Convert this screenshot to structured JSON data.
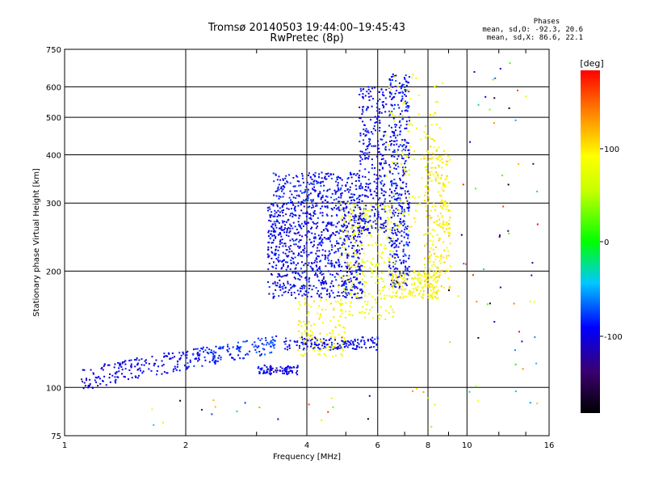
{
  "title_line1": "Tromsø 20140503 19:44:00–19:45:43",
  "title_line2": "RwPretec (8p)",
  "phases": {
    "heading": "Phases",
    "line1": "mean, sd,O: -92.3, 20.6",
    "line2": "mean, sd,X: 86.6, 22.1"
  },
  "colorbar": {
    "unit_label": "[deg]",
    "ticks": [
      "100",
      "0",
      "-100"
    ]
  },
  "chart_data": {
    "type": "scatter",
    "xlabel": "Frequency [MHz]",
    "ylabel": "Stationary phase Virtual Height [km]",
    "x_scale": "log",
    "y_scale": "log",
    "xlim": [
      1,
      16
    ],
    "ylim": [
      75,
      750
    ],
    "grid": true,
    "x_ticks": [
      {
        "value": 1,
        "label": "1"
      },
      {
        "value": 2,
        "label": "2"
      },
      {
        "value": 4,
        "label": "4"
      },
      {
        "value": 6,
        "label": "6"
      },
      {
        "value": 8,
        "label": "8"
      },
      {
        "value": 10,
        "label": "10"
      },
      {
        "value": 16,
        "label": "16"
      }
    ],
    "y_ticks": [
      {
        "value": 75,
        "label": "75"
      },
      {
        "value": 100,
        "label": "100"
      },
      {
        "value": 200,
        "label": "200"
      },
      {
        "value": 300,
        "label": "300"
      },
      {
        "value": 400,
        "label": "400"
      },
      {
        "value": 500,
        "label": "500"
      },
      {
        "value": 600,
        "label": "600"
      },
      {
        "value": 750,
        "label": "750"
      }
    ],
    "color_scale": {
      "min": -180,
      "max": 180,
      "palette": "rainbow"
    },
    "point_clusters": [
      {
        "name": "E-region O trace",
        "x": [
          1.1,
          3.4
        ],
        "y": [
          105,
          140
        ],
        "phase_start": -105,
        "phase_end": -75,
        "n": 320
      },
      {
        "name": "E-region band",
        "x": [
          3.0,
          3.8
        ],
        "y": [
          108,
          114
        ],
        "phase": -100,
        "n": 80
      },
      {
        "name": "F1 O layers",
        "x": [
          3.2,
          5.5
        ],
        "y": [
          170,
          300
        ],
        "phase": -95,
        "n": 900
      },
      {
        "name": "F O cusp",
        "x": [
          3.3,
          5.5
        ],
        "y": [
          300,
          360
        ],
        "phase": -90,
        "n": 250
      },
      {
        "name": "F O cusp steep",
        "x": [
          5.4,
          6.3
        ],
        "y": [
          250,
          600
        ],
        "phase": -95,
        "n": 300
      },
      {
        "name": "F2 O spread",
        "x": [
          6.4,
          7.2
        ],
        "y": [
          180,
          650
        ],
        "phase": -90,
        "n": 420
      },
      {
        "name": "Sporadic band",
        "x": [
          3.5,
          6.0
        ],
        "y": [
          125,
          135
        ],
        "phase": -95,
        "n": 160
      },
      {
        "name": "X trace mid",
        "x": [
          4.8,
          6.6
        ],
        "y": [
          150,
          300
        ],
        "phase": 80,
        "n": 260
      },
      {
        "name": "X trace E",
        "x": [
          3.8,
          5.0
        ],
        "y": [
          120,
          170
        ],
        "phase": 90,
        "n": 120
      },
      {
        "name": "X cusp",
        "x": [
          6.5,
          8.5
        ],
        "y": [
          170,
          200
        ],
        "phase": 90,
        "n": 160
      },
      {
        "name": "X steep",
        "x": [
          7.8,
          9.1
        ],
        "y": [
          180,
          420
        ],
        "phase": 95,
        "n": 220
      },
      {
        "name": "X upper",
        "x": [
          6.3,
          8.8
        ],
        "y": [
          250,
          650
        ],
        "phase": 85,
        "n": 140
      },
      {
        "name": "Noise high",
        "x": [
          9.0,
          15.0
        ],
        "y": [
          90,
          700
        ],
        "phase": "mixed",
        "n": 60
      },
      {
        "name": "Noise low",
        "x": [
          1.5,
          9.0
        ],
        "y": [
          76,
          100
        ],
        "phase": "mixed",
        "n": 25
      }
    ]
  }
}
